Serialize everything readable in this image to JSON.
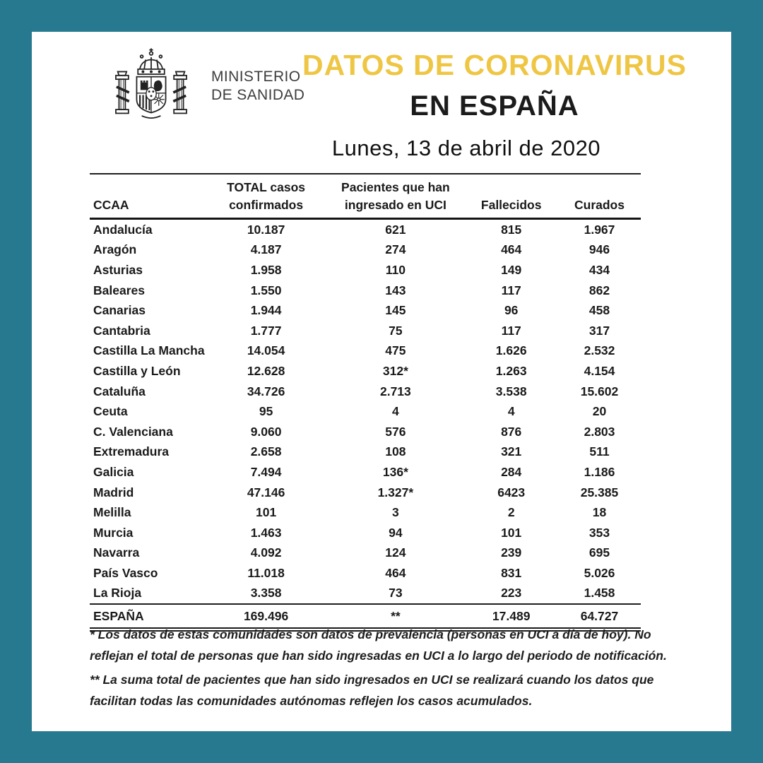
{
  "theme": {
    "border_color": "#26798f",
    "panel_color": "#ffffff",
    "accent_yellow": "#efc644",
    "text_black": "#1a1a1a"
  },
  "header": {
    "logo_icon": "spain-coat-of-arms-icon",
    "ministry_line1": "MINISTERIO",
    "ministry_line2": "DE SANIDAD",
    "title_line1": "DATOS DE CORONAVIRUS",
    "title_line2": "EN ESPAÑA",
    "date": "Lunes, 13 de abril de 2020"
  },
  "chart_data": {
    "type": "table",
    "title": "Datos de coronavirus en España",
    "header_lines": [
      [
        "CCAA"
      ],
      [
        "TOTAL casos",
        "confirmados"
      ],
      [
        "Pacientes que han",
        "ingresado en UCI"
      ],
      [
        "Fallecidos"
      ],
      [
        "Curados"
      ]
    ],
    "rows": [
      [
        "Andalucía",
        "10.187",
        "621",
        "815",
        "1.967"
      ],
      [
        "Aragón",
        "4.187",
        "274",
        "464",
        "946"
      ],
      [
        "Asturias",
        "1.958",
        "110",
        "149",
        "434"
      ],
      [
        "Baleares",
        "1.550",
        "143",
        "117",
        "862"
      ],
      [
        "Canarias",
        "1.944",
        "145",
        "96",
        "458"
      ],
      [
        "Cantabria",
        "1.777",
        "75",
        "117",
        "317"
      ],
      [
        "Castilla La Mancha",
        "14.054",
        "475",
        "1.626",
        "2.532"
      ],
      [
        "Castilla y León",
        "12.628",
        "312*",
        "1.263",
        "4.154"
      ],
      [
        "Cataluña",
        "34.726",
        "2.713",
        "3.538",
        "15.602"
      ],
      [
        "Ceuta",
        "95",
        "4",
        "4",
        "20"
      ],
      [
        "C. Valenciana",
        "9.060",
        "576",
        "876",
        "2.803"
      ],
      [
        "Extremadura",
        "2.658",
        "108",
        "321",
        "511"
      ],
      [
        "Galicia",
        "7.494",
        "136*",
        "284",
        "1.186"
      ],
      [
        "Madrid",
        "47.146",
        "1.327*",
        "6423",
        "25.385"
      ],
      [
        "Melilla",
        "101",
        "3",
        "2",
        "18"
      ],
      [
        "Murcia",
        "1.463",
        "94",
        "101",
        "353"
      ],
      [
        "Navarra",
        "4.092",
        "124",
        "239",
        "695"
      ],
      [
        "País Vasco",
        "11.018",
        "464",
        "831",
        "5.026"
      ],
      [
        "La Rioja",
        "3.358",
        "73",
        "223",
        "1.458"
      ]
    ],
    "total_row": [
      "ESPAÑA",
      "169.496",
      "**",
      "17.489",
      "64.727"
    ],
    "footnotes": [
      "* Los datos de estas comunidades son datos de prevalencia (personas en UCI a día de hoy). No reflejan el total de personas que han sido ingresadas en UCI a lo largo del periodo de notificación.",
      "** La suma total de pacientes que han sido ingresados en UCI se realizará cuando los datos que facilitan todas las comunidades autónomas reflejen los casos acumulados."
    ]
  }
}
